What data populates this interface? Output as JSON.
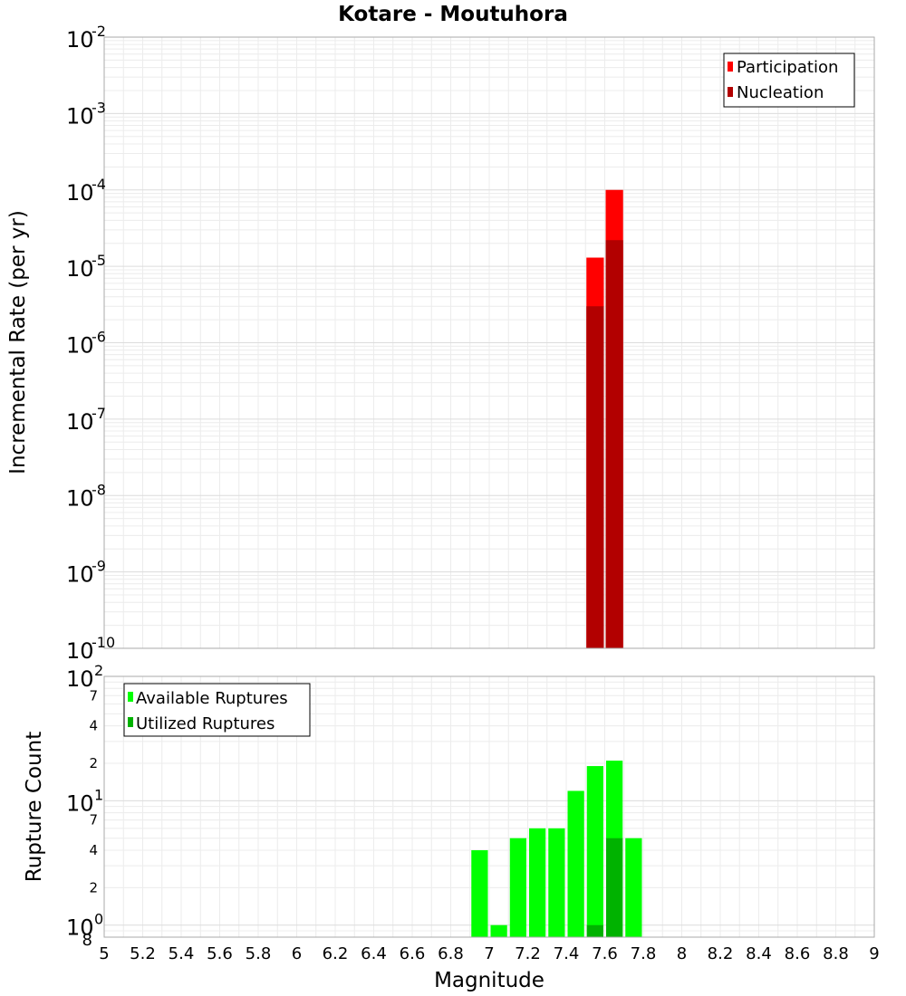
{
  "title": "Kotare - Moutuhora",
  "chart_data": [
    {
      "type": "bar",
      "panel": "top",
      "title": "Kotare - Moutuhora",
      "xlabel": "Magnitude",
      "ylabel": "Incremental Rate (per yr)",
      "yscale": "log",
      "xlim": [
        5,
        9
      ],
      "ylim": [
        1e-10,
        0.01
      ],
      "bar_width": 0.1,
      "y_ticks": [
        {
          "base": "10",
          "exp": "-10"
        },
        {
          "base": "10",
          "exp": "-9"
        },
        {
          "base": "10",
          "exp": "-8"
        },
        {
          "base": "10",
          "exp": "-7"
        },
        {
          "base": "10",
          "exp": "-6"
        },
        {
          "base": "10",
          "exp": "-5"
        },
        {
          "base": "10",
          "exp": "-4"
        },
        {
          "base": "10",
          "exp": "-3"
        },
        {
          "base": "10",
          "exp": "-2"
        }
      ],
      "legend_position": "top-right",
      "series": [
        {
          "name": "Participation",
          "color": "#ff0000",
          "points": [
            {
              "x": 7.55,
              "y": 1.3e-05
            },
            {
              "x": 7.65,
              "y": 0.0001
            }
          ]
        },
        {
          "name": "Nucleation",
          "color": "#b20000",
          "points": [
            {
              "x": 7.55,
              "y": 3e-06
            },
            {
              "x": 7.65,
              "y": 2.2e-05
            }
          ]
        }
      ]
    },
    {
      "type": "bar",
      "panel": "bottom",
      "xlabel": "Magnitude",
      "ylabel": "Rupture Count",
      "yscale": "log",
      "xlim": [
        5,
        9
      ],
      "ylim": [
        0.8,
        100
      ],
      "bar_width": 0.1,
      "x_tick_labels": [
        "5",
        "5.2",
        "5.4",
        "5.6",
        "5.8",
        "6",
        "6.2",
        "6.4",
        "6.6",
        "6.8",
        "7",
        "7.2",
        "7.4",
        "7.6",
        "7.8",
        "8",
        "8.2",
        "8.4",
        "8.6",
        "8.8",
        "9"
      ],
      "y_major_ticks": [
        {
          "base": "10",
          "exp": "0"
        },
        {
          "base": "10",
          "exp": "1"
        },
        {
          "base": "10",
          "exp": "2"
        }
      ],
      "y_minor_labels": [
        {
          "value": 0.8,
          "label": "8"
        },
        {
          "value": 2,
          "label": "2"
        },
        {
          "value": 4,
          "label": "4"
        },
        {
          "value": 7,
          "label": "7"
        },
        {
          "value": 20,
          "label": "2"
        },
        {
          "value": 40,
          "label": "4"
        },
        {
          "value": 70,
          "label": "7"
        }
      ],
      "legend_position": "top-left",
      "series": [
        {
          "name": "Available Ruptures",
          "color": "#00ff00",
          "points": [
            {
              "x": 6.95,
              "y": 4
            },
            {
              "x": 7.05,
              "y": 1
            },
            {
              "x": 7.15,
              "y": 5
            },
            {
              "x": 7.25,
              "y": 6
            },
            {
              "x": 7.35,
              "y": 6
            },
            {
              "x": 7.45,
              "y": 12
            },
            {
              "x": 7.55,
              "y": 19
            },
            {
              "x": 7.65,
              "y": 21
            },
            {
              "x": 7.75,
              "y": 5
            }
          ]
        },
        {
          "name": "Utilized Ruptures",
          "color": "#00b200",
          "points": [
            {
              "x": 7.55,
              "y": 1
            },
            {
              "x": 7.65,
              "y": 5
            }
          ]
        }
      ]
    }
  ]
}
